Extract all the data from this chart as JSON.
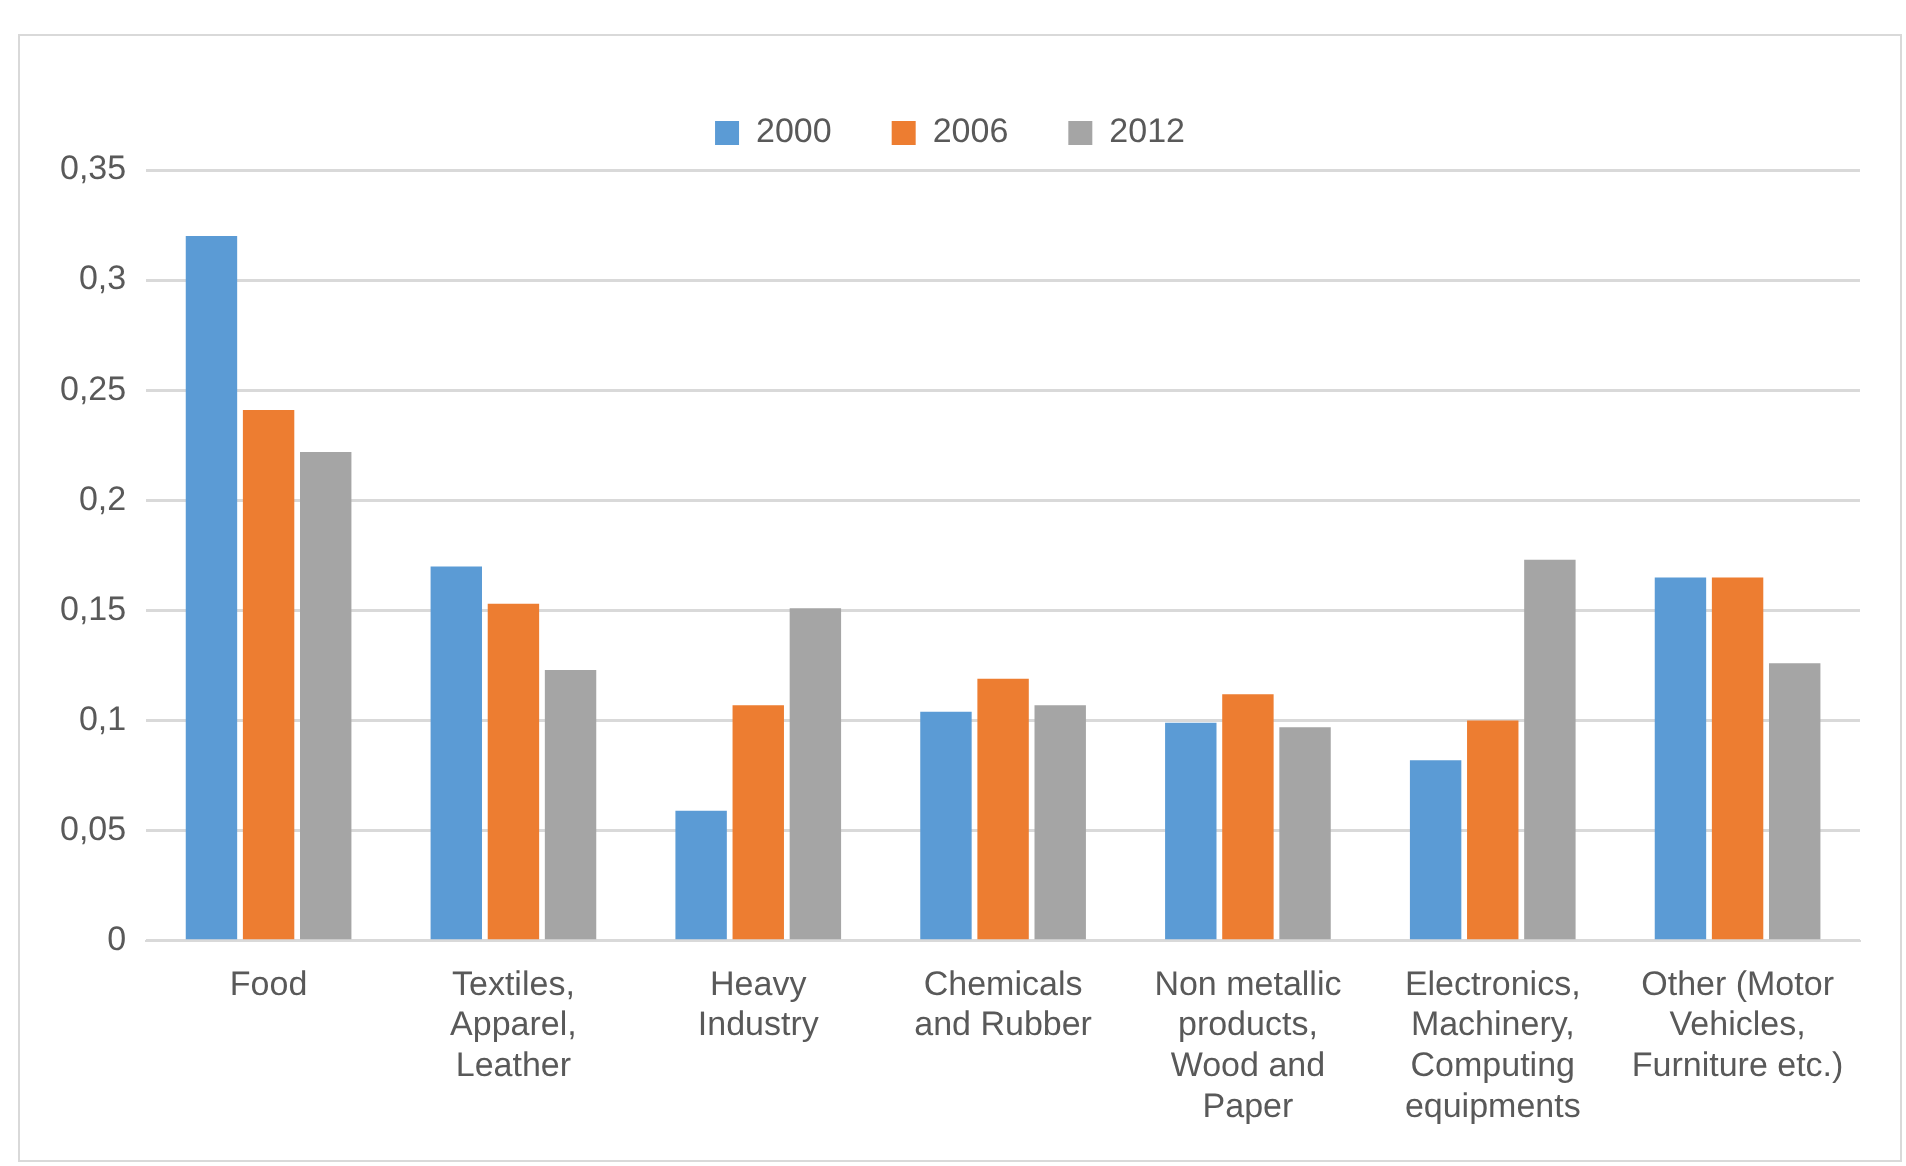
{
  "chart_data": {
    "type": "bar",
    "categories": [
      "Food",
      "Textiles, Apparel, Leather",
      "Heavy Industry",
      "Chemicals and Rubber",
      "Non metallic products, Wood and Paper",
      "Electronics, Machinery, Computing equipments",
      "Other (Motor Vehicles, Furniture etc.)"
    ],
    "series": [
      {
        "name": "2000",
        "color": "#5b9bd5",
        "values": [
          0.32,
          0.17,
          0.059,
          0.104,
          0.099,
          0.082,
          0.165
        ]
      },
      {
        "name": "2006",
        "color": "#ed7d31",
        "values": [
          0.241,
          0.153,
          0.107,
          0.119,
          0.112,
          0.1,
          0.165
        ]
      },
      {
        "name": "2012",
        "color": "#a5a5a5",
        "values": [
          0.222,
          0.123,
          0.151,
          0.107,
          0.097,
          0.173,
          0.126
        ]
      }
    ],
    "ylim": [
      0,
      0.35
    ],
    "yticks": [
      0,
      {
        "value": 0.05,
        "label": "0,05"
      },
      {
        "value": 0.1,
        "label": "0,1"
      },
      {
        "value": 0.15,
        "label": "0,15"
      },
      {
        "value": 0.2,
        "label": "0,2"
      },
      {
        "value": 0.25,
        "label": "0,25"
      },
      {
        "value": 0.3,
        "label": "0,3"
      },
      {
        "value": 0.35,
        "label": "0,35"
      }
    ],
    "grid": "y",
    "legend": "top"
  }
}
